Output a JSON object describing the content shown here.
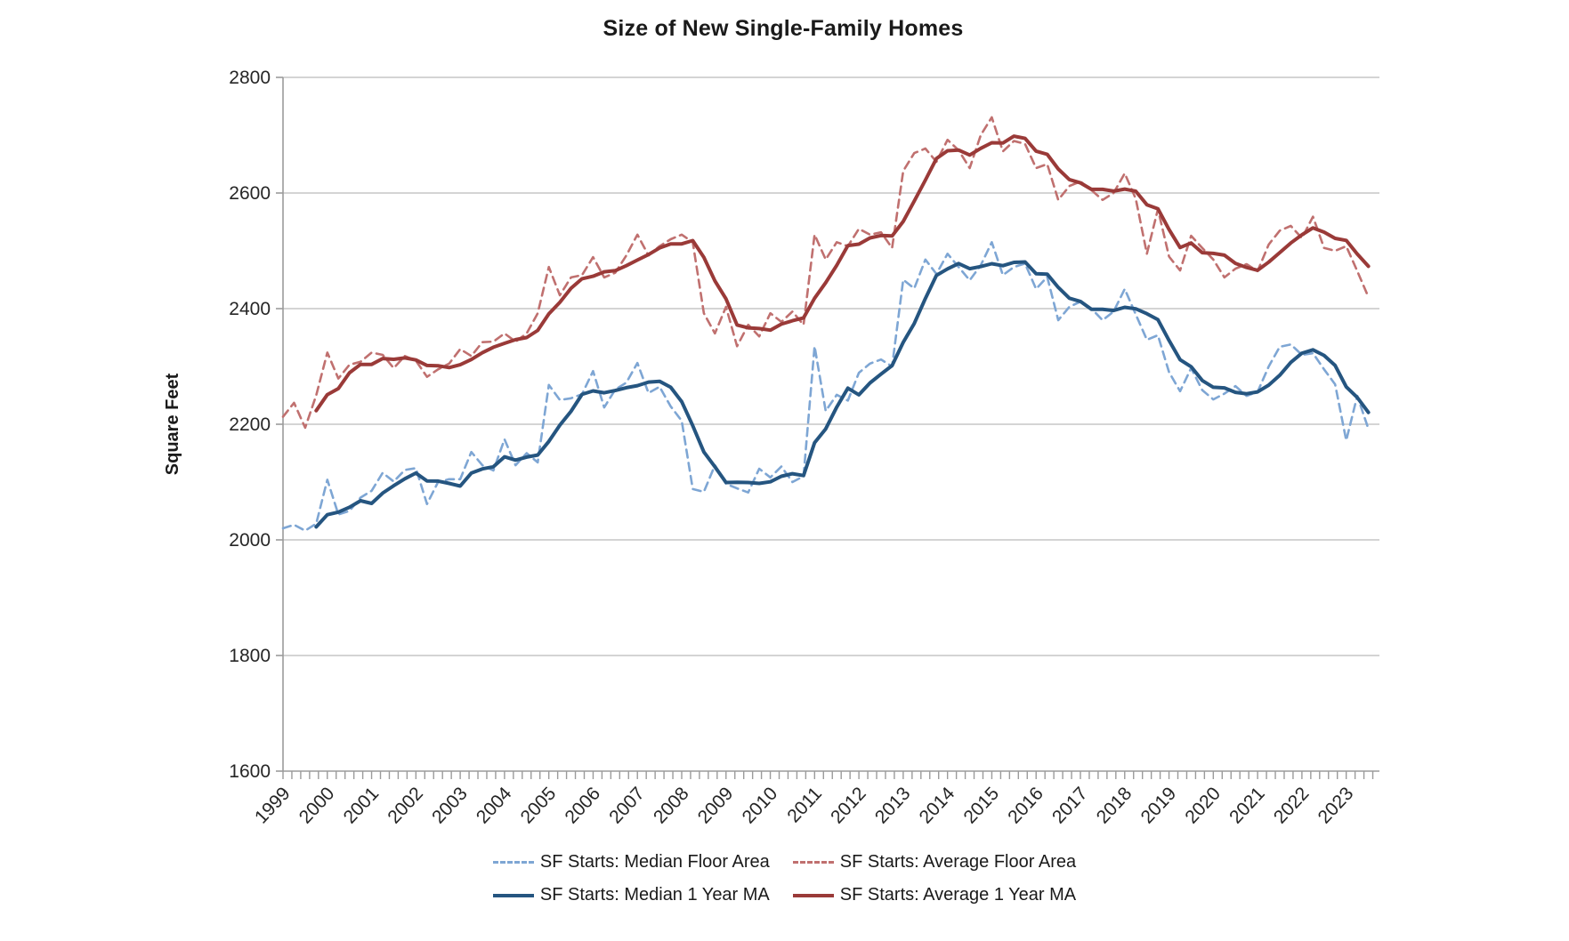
{
  "chart_data": {
    "type": "line",
    "title": "Size of New Single-Family Homes",
    "ylabel": "Square Feet",
    "ylim": [
      1600,
      2800
    ],
    "y_ticks": [
      1600,
      1800,
      2000,
      2200,
      2400,
      2600,
      2800
    ],
    "x_domain": [
      1999,
      2023.75
    ],
    "x_tick_years": [
      1999,
      2000,
      2001,
      2002,
      2003,
      2004,
      2005,
      2006,
      2007,
      2008,
      2009,
      2010,
      2011,
      2012,
      2013,
      2014,
      2015,
      2016,
      2017,
      2018,
      2019,
      2020,
      2021,
      2022,
      2023
    ],
    "x_minor_tick_step": 0.2,
    "x_start_year": 1999,
    "points_per_year": 4,
    "ma_window": 4,
    "grid": true,
    "legend_position": "bottom",
    "series": [
      {
        "name": "SF Starts: Median Floor Area",
        "style": "dashed",
        "color": "#7EA6D4",
        "values": [
          2020,
          2026,
          2016,
          2028,
          2104,
          2044,
          2050,
          2073,
          2085,
          2116,
          2101,
          2121,
          2124,
          2062,
          2100,
          2105,
          2105,
          2152,
          2129,
          2120,
          2174,
          2129,
          2150,
          2134,
          2268,
          2242,
          2245,
          2252,
          2292,
          2229,
          2260,
          2272,
          2306,
          2254,
          2265,
          2231,
          2206,
          2088,
          2083,
          2129,
          2097,
          2089,
          2082,
          2123,
          2108,
          2127,
          2100,
          2110,
          2335,
          2223,
          2251,
          2241,
          2289,
          2305,
          2312,
          2300,
          2450,
          2435,
          2485,
          2460,
          2495,
          2472,
          2449,
          2475,
          2515,
          2458,
          2472,
          2478,
          2434,
          2455,
          2380,
          2403,
          2412,
          2400,
          2380,
          2395,
          2434,
          2390,
          2346,
          2354,
          2290,
          2257,
          2297,
          2259,
          2243,
          2253,
          2266,
          2249,
          2256,
          2300,
          2334,
          2338,
          2320,
          2323,
          2295,
          2269,
          2172,
          2249,
          2192
        ]
      },
      {
        "name": "SF Starts: Average Floor Area",
        "style": "dashed",
        "color": "#C0706F",
        "values": [
          2213,
          2237,
          2194,
          2250,
          2324,
          2279,
          2303,
          2308,
          2324,
          2320,
          2297,
          2318,
          2310,
          2282,
          2295,
          2305,
          2330,
          2318,
          2342,
          2343,
          2357,
          2343,
          2357,
          2392,
          2472,
          2423,
          2454,
          2458,
          2489,
          2454,
          2462,
          2492,
          2528,
          2492,
          2508,
          2520,
          2528,
          2515,
          2392,
          2357,
          2403,
          2335,
          2372,
          2352,
          2392,
          2377,
          2395,
          2372,
          2528,
          2485,
          2515,
          2508,
          2538,
          2528,
          2532,
          2505,
          2638,
          2669,
          2677,
          2654,
          2692,
          2674,
          2643,
          2700,
          2731,
          2672,
          2690,
          2685,
          2643,
          2650,
          2588,
          2612,
          2620,
          2605,
          2588,
          2600,
          2634,
          2590,
          2495,
          2572,
          2490,
          2466,
          2526,
          2505,
          2485,
          2454,
          2469,
          2477,
          2465,
          2511,
          2535,
          2543,
          2522,
          2559,
          2505,
          2500,
          2508,
          2465,
          2420
        ]
      },
      {
        "name": "SF Starts: Median 1 Year MA",
        "style": "solid",
        "color": "#255580",
        "ma_of": 0
      },
      {
        "name": "SF Starts: Average 1 Year MA",
        "style": "solid",
        "color": "#9A3A38",
        "ma_of": 1
      }
    ]
  }
}
